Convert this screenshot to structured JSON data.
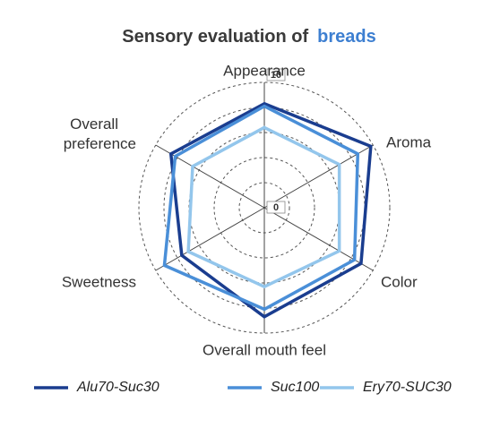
{
  "chart_data": {
    "type": "radar",
    "title": "Sensory evaluation of",
    "title_highlight": "breads",
    "categories": [
      "Appearance",
      "Aroma",
      "Color",
      "Overall mouth feel",
      "Sweetness",
      "Overall preference"
    ],
    "series": [
      {
        "name": "Alu70-Suc30",
        "color": "#1a3d8f",
        "values": [
          8.3,
          9.8,
          8.9,
          8.7,
          7.6,
          8.6
        ]
      },
      {
        "name": "Suc100",
        "color": "#4a8fd8",
        "values": [
          8.1,
          8.6,
          8.3,
          8.1,
          9.2,
          8.2
        ]
      },
      {
        "name": "Ery70-SUC30",
        "color": "#93c6ec",
        "values": [
          6.4,
          6.9,
          6.9,
          6.3,
          7.0,
          6.6
        ]
      }
    ],
    "rlim": [
      0,
      10
    ],
    "rticks": [
      0,
      10
    ],
    "rgrid": [
      2,
      4,
      6,
      8,
      10
    ],
    "legend": "bottom"
  }
}
